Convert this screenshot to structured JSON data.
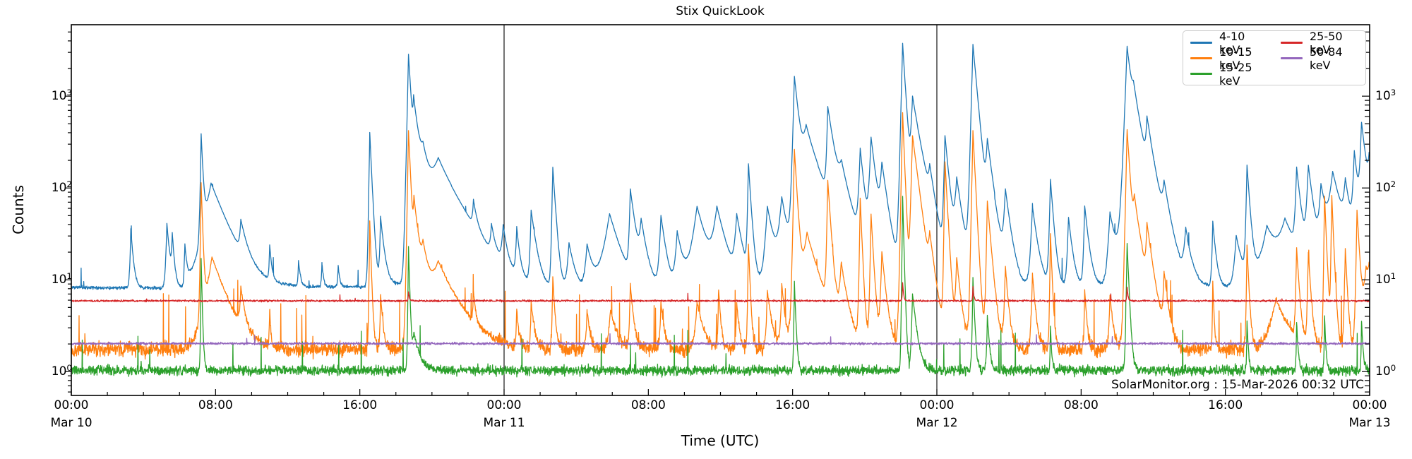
{
  "title": "Stix QuickLook",
  "annotation": "SolarMonitor.org : 15-Mar-2026 00:32 UTC",
  "axes": {
    "xlabel": "Time (UTC)",
    "ylabel": "Counts"
  },
  "chart_data": {
    "type": "line",
    "title": "Stix QuickLook",
    "xlabel": "Time (UTC)",
    "ylabel": "Counts",
    "yscale": "log",
    "ylim": [
      0.55,
      6000
    ],
    "x_hours_range": [
      0,
      72
    ],
    "grid": false,
    "legend_position": "upper right",
    "legend_columns": 2,
    "x_major_ticks": [
      {
        "hour": 0,
        "time": "00:00",
        "date": "Mar 10"
      },
      {
        "hour": 8,
        "time": "08:00"
      },
      {
        "hour": 16,
        "time": "16:00"
      },
      {
        "hour": 24,
        "time": "00:00",
        "date": "Mar 11"
      },
      {
        "hour": 32,
        "time": "08:00"
      },
      {
        "hour": 40,
        "time": "16:00"
      },
      {
        "hour": 48,
        "time": "00:00",
        "date": "Mar 12"
      },
      {
        "hour": 56,
        "time": "08:00"
      },
      {
        "hour": 64,
        "time": "16:00"
      },
      {
        "hour": 72,
        "time": "00:00",
        "date": "Mar 13"
      }
    ],
    "x_minor_step_hours": 2,
    "day_boundary_hours": [
      24,
      48
    ],
    "y_decade_ticks": [
      {
        "value": 1,
        "mantissa": "10",
        "exp": "0"
      },
      {
        "value": 10,
        "mantissa": "10",
        "exp": "1"
      },
      {
        "value": 100,
        "mantissa": "10",
        "exp": "2"
      },
      {
        "value": 1000,
        "mantissa": "10",
        "exp": "3"
      }
    ],
    "series": [
      {
        "name": "4-10 keV",
        "color": "#1f77b4",
        "seed": 11,
        "noise": 0.02,
        "spike_prob": 0.003,
        "spike_mag": 0.6,
        "base": [
          [
            0,
            8.3
          ],
          [
            7,
            8.0
          ],
          [
            10,
            8.3
          ],
          [
            16,
            8.4
          ],
          [
            21,
            9.5
          ],
          [
            24,
            8.0
          ],
          [
            27,
            7.2
          ],
          [
            30,
            7.3
          ],
          [
            33,
            7.2
          ],
          [
            36,
            7.5
          ],
          [
            39,
            8.0
          ],
          [
            42,
            8.5
          ],
          [
            45,
            9.0
          ],
          [
            48,
            8.5
          ],
          [
            51,
            8.8
          ],
          [
            54,
            8.2
          ],
          [
            56,
            8.0
          ],
          [
            60,
            9.0
          ],
          [
            62,
            8.3
          ],
          [
            64,
            8.3
          ],
          [
            66,
            9.2
          ],
          [
            68,
            10.0
          ],
          [
            70,
            10.5
          ],
          [
            72,
            11.0
          ]
        ],
        "spikes": [
          [
            3.3,
            28,
            0.04,
            0.12
          ],
          [
            5.3,
            33,
            0.05,
            0.15
          ],
          [
            5.6,
            20,
            0.04,
            0.1
          ],
          [
            6.3,
            15,
            0.04,
            0.1
          ],
          [
            7.2,
            360,
            0.035,
            0.09
          ],
          [
            7.75,
            105,
            0.35,
            0.8
          ],
          [
            9.4,
            24,
            0.06,
            0.3
          ],
          [
            11.0,
            14,
            0.03,
            0.1
          ],
          [
            12.6,
            8,
            0.03,
            0.1
          ],
          [
            13.9,
            7,
            0.03,
            0.08
          ],
          [
            14.8,
            6,
            0.03,
            0.08
          ],
          [
            16.55,
            395,
            0.035,
            0.1
          ],
          [
            17.15,
            40,
            0.04,
            0.18
          ],
          [
            18.7,
            2850,
            0.05,
            0.13
          ],
          [
            18.98,
            680,
            0.05,
            0.35
          ],
          [
            19.5,
            120,
            0.15,
            0.3
          ],
          [
            20.35,
            185,
            0.55,
            1.1
          ],
          [
            22.3,
            35,
            0.05,
            0.18
          ],
          [
            23.3,
            20,
            0.06,
            0.2
          ],
          [
            23.95,
            24,
            0.08,
            0.2
          ],
          [
            24.7,
            26,
            0.05,
            0.15
          ],
          [
            25.5,
            48,
            0.05,
            0.25
          ],
          [
            26.7,
            160,
            0.04,
            0.14
          ],
          [
            27.6,
            18,
            0.1,
            0.3
          ],
          [
            28.6,
            16,
            0.1,
            0.3
          ],
          [
            29.85,
            45,
            0.3,
            0.55
          ],
          [
            31.0,
            85,
            0.05,
            0.25
          ],
          [
            31.6,
            30,
            0.1,
            0.3
          ],
          [
            32.7,
            42,
            0.08,
            0.25
          ],
          [
            33.6,
            25,
            0.1,
            0.3
          ],
          [
            34.7,
            55,
            0.25,
            0.5
          ],
          [
            35.8,
            50,
            0.2,
            0.45
          ],
          [
            36.9,
            40,
            0.1,
            0.3
          ],
          [
            37.55,
            170,
            0.04,
            0.13
          ],
          [
            38.6,
            55,
            0.12,
            0.35
          ],
          [
            39.4,
            65,
            0.15,
            0.3
          ],
          [
            40.1,
            1600,
            0.06,
            0.22
          ],
          [
            40.75,
            400,
            0.25,
            0.75
          ],
          [
            41.95,
            680,
            0.05,
            0.3
          ],
          [
            42.7,
            110,
            0.2,
            0.5
          ],
          [
            43.75,
            240,
            0.07,
            0.2
          ],
          [
            44.35,
            330,
            0.08,
            0.25
          ],
          [
            44.95,
            150,
            0.1,
            0.3
          ],
          [
            46.1,
            3750,
            0.055,
            0.14
          ],
          [
            46.65,
            920,
            0.08,
            0.4
          ],
          [
            47.6,
            90,
            0.08,
            0.25
          ],
          [
            48.45,
            350,
            0.05,
            0.2
          ],
          [
            49.1,
            110,
            0.1,
            0.3
          ],
          [
            50.0,
            3650,
            0.06,
            0.2
          ],
          [
            50.8,
            270,
            0.08,
            0.3
          ],
          [
            51.8,
            80,
            0.08,
            0.25
          ],
          [
            53.3,
            55,
            0.08,
            0.25
          ],
          [
            54.3,
            115,
            0.05,
            0.15
          ],
          [
            55.3,
            40,
            0.06,
            0.2
          ],
          [
            56.2,
            55,
            0.05,
            0.2
          ],
          [
            57.6,
            45,
            0.1,
            0.3
          ],
          [
            58.55,
            3350,
            0.08,
            0.22
          ],
          [
            58.9,
            800,
            0.2,
            0.5
          ],
          [
            59.65,
            400,
            0.06,
            0.3
          ],
          [
            60.6,
            70,
            0.1,
            0.3
          ],
          [
            61.8,
            25,
            0.1,
            0.3
          ],
          [
            63.3,
            35,
            0.04,
            0.15
          ],
          [
            64.6,
            22,
            0.1,
            0.3
          ],
          [
            65.2,
            165,
            0.045,
            0.14
          ],
          [
            66.3,
            28,
            0.3,
            0.6
          ],
          [
            67.3,
            32,
            0.35,
            0.7
          ],
          [
            67.95,
            145,
            0.06,
            0.2
          ],
          [
            68.6,
            155,
            0.08,
            0.25
          ],
          [
            69.3,
            85,
            0.1,
            0.3
          ],
          [
            69.95,
            130,
            0.2,
            0.5
          ],
          [
            70.65,
            85,
            0.1,
            0.25
          ],
          [
            71.15,
            220,
            0.07,
            0.2
          ],
          [
            71.55,
            470,
            0.07,
            0.25
          ],
          [
            71.97,
            140,
            0.08,
            0.3
          ]
        ]
      },
      {
        "name": "10-15 keV",
        "color": "#ff7f0e",
        "seed": 22,
        "noise": 0.085,
        "spike_prob": 0.012,
        "spike_mag": 1.6,
        "base": [
          [
            0,
            1.75
          ],
          [
            72,
            1.75
          ]
        ],
        "spikes": [
          [
            7.2,
            110,
            0.03,
            0.07
          ],
          [
            7.8,
            16,
            0.3,
            0.7
          ],
          [
            9.4,
            5,
            0.05,
            0.2
          ],
          [
            11.0,
            3,
            0.02,
            0.06
          ],
          [
            16.55,
            42,
            0.025,
            0.07
          ],
          [
            17.15,
            5,
            0.03,
            0.12
          ],
          [
            18.7,
            420,
            0.04,
            0.1
          ],
          [
            19.0,
            60,
            0.05,
            0.3
          ],
          [
            19.5,
            12,
            0.1,
            0.3
          ],
          [
            20.35,
            13,
            0.5,
            1.0
          ],
          [
            22.3,
            4,
            0.03,
            0.1
          ],
          [
            24.7,
            3,
            0.03,
            0.1
          ],
          [
            25.5,
            4,
            0.03,
            0.15
          ],
          [
            26.7,
            9,
            0.03,
            0.1
          ],
          [
            28.6,
            3,
            0.05,
            0.15
          ],
          [
            29.9,
            3,
            0.1,
            0.3
          ],
          [
            31.0,
            7,
            0.04,
            0.15
          ],
          [
            32.7,
            4,
            0.05,
            0.15
          ],
          [
            34.7,
            4,
            0.1,
            0.3
          ],
          [
            35.9,
            6,
            0.03,
            0.1
          ],
          [
            36.9,
            4,
            0.04,
            0.12
          ],
          [
            37.55,
            23,
            0.03,
            0.08
          ],
          [
            38.6,
            6,
            0.05,
            0.2
          ],
          [
            39.4,
            7,
            0.05,
            0.15
          ],
          [
            40.1,
            260,
            0.045,
            0.13
          ],
          [
            40.8,
            30,
            0.25,
            0.6
          ],
          [
            41.95,
            115,
            0.04,
            0.14
          ],
          [
            42.7,
            12,
            0.1,
            0.3
          ],
          [
            43.75,
            75,
            0.035,
            0.09
          ],
          [
            44.35,
            50,
            0.04,
            0.12
          ],
          [
            44.95,
            18,
            0.06,
            0.2
          ],
          [
            46.1,
            660,
            0.045,
            0.09
          ],
          [
            46.65,
            370,
            0.06,
            0.28
          ],
          [
            47.6,
            20,
            0.08,
            0.25
          ],
          [
            48.45,
            190,
            0.035,
            0.12
          ],
          [
            49.1,
            15,
            0.06,
            0.2
          ],
          [
            50.0,
            420,
            0.045,
            0.11
          ],
          [
            50.8,
            70,
            0.045,
            0.18
          ],
          [
            51.8,
            12,
            0.05,
            0.15
          ],
          [
            53.3,
            10,
            0.05,
            0.15
          ],
          [
            54.3,
            30,
            0.03,
            0.08
          ],
          [
            56.2,
            6,
            0.03,
            0.1
          ],
          [
            57.6,
            5,
            0.05,
            0.15
          ],
          [
            58.55,
            430,
            0.05,
            0.14
          ],
          [
            58.95,
            60,
            0.1,
            0.4
          ],
          [
            59.65,
            30,
            0.05,
            0.25
          ],
          [
            60.6,
            9,
            0.05,
            0.2
          ],
          [
            63.3,
            8,
            0.02,
            0.06
          ],
          [
            65.2,
            22,
            0.03,
            0.09
          ],
          [
            66.8,
            4.5,
            0.3,
            0.6
          ],
          [
            67.95,
            20,
            0.04,
            0.12
          ],
          [
            68.6,
            18,
            0.04,
            0.12
          ],
          [
            69.5,
            80,
            0.03,
            0.09
          ],
          [
            69.9,
            80,
            0.03,
            0.09
          ],
          [
            70.65,
            20,
            0.04,
            0.1
          ],
          [
            71.3,
            55,
            0.04,
            0.12
          ],
          [
            71.8,
            10,
            0.15,
            0.3
          ],
          [
            71.97,
            8,
            0.1,
            0.2
          ]
        ]
      },
      {
        "name": "15-25 keV",
        "color": "#2ca02c",
        "seed": 33,
        "noise": 0.06,
        "spike_prob": 0.006,
        "spike_mag": 0.9,
        "base": [
          [
            0,
            1.03
          ],
          [
            72,
            1.03
          ]
        ],
        "spikes": [
          [
            7.2,
            16,
            0.02,
            0.05
          ],
          [
            18.7,
            22,
            0.025,
            0.06
          ],
          [
            19.0,
            1.5,
            0.1,
            0.3
          ],
          [
            40.1,
            8.5,
            0.025,
            0.07
          ],
          [
            46.1,
            80,
            0.025,
            0.06
          ],
          [
            46.65,
            6,
            0.05,
            0.2
          ],
          [
            50.0,
            9.5,
            0.03,
            0.08
          ],
          [
            50.8,
            3,
            0.03,
            0.1
          ],
          [
            54.3,
            2,
            0.02,
            0.06
          ],
          [
            58.55,
            24,
            0.035,
            0.09
          ],
          [
            65.2,
            2.5,
            0.02,
            0.06
          ],
          [
            67.95,
            2.5,
            0.02,
            0.07
          ],
          [
            69.5,
            3,
            0.02,
            0.06
          ],
          [
            71.55,
            2.5,
            0.02,
            0.07
          ]
        ]
      },
      {
        "name": "25-50 keV",
        "color": "#d62728",
        "seed": 47,
        "noise": 0.011,
        "spike_prob": 0.002,
        "spike_mag": 0.12,
        "base": [
          [
            0,
            5.9
          ],
          [
            72,
            5.9
          ]
        ],
        "spikes": [
          [
            18.7,
            1.5,
            0.02,
            0.05
          ],
          [
            46.1,
            3.5,
            0.02,
            0.05
          ],
          [
            50.0,
            2.5,
            0.02,
            0.05
          ],
          [
            58.55,
            2.5,
            0.02,
            0.05
          ]
        ]
      },
      {
        "name": "50-84 keV",
        "color": "#9467bd",
        "seed": 55,
        "noise": 0.014,
        "spike_prob": 0.002,
        "spike_mag": 0.15,
        "base": [
          [
            0,
            2.02
          ],
          [
            72,
            2.02
          ]
        ],
        "spikes": []
      }
    ]
  }
}
